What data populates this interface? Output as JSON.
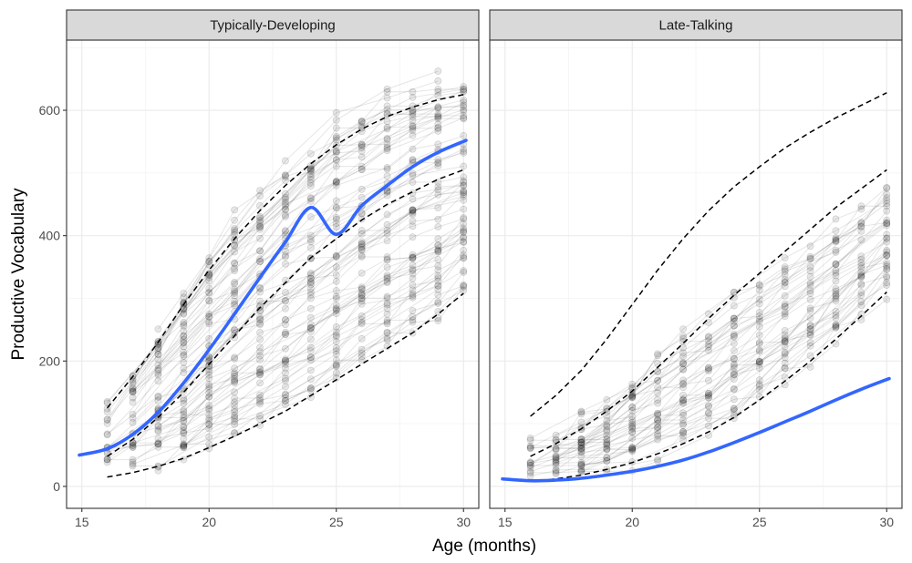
{
  "chart_data": {
    "type": "line",
    "xlabel": "Age (months)",
    "ylabel": "Productive Vocabulary",
    "xlim": [
      14.4,
      30.6
    ],
    "ylim": [
      -35,
      712
    ],
    "xticks": [
      15,
      20,
      25,
      30
    ],
    "yticks": [
      0,
      200,
      400,
      600
    ],
    "grid": true,
    "colors": {
      "trend": "#3366FF",
      "trajectories": "#000000",
      "strip_fill": "#D9D9D9",
      "grid_major": "#EBEBEB",
      "reference": "#000000"
    },
    "panels": [
      {
        "title": "Typically-Developing",
        "observation_ages": [
          16,
          17,
          18,
          19,
          20,
          21,
          22,
          23,
          24,
          25,
          26,
          27,
          28,
          29,
          30
        ],
        "trend_line": {
          "x": [
            14.9,
            16,
            17,
            18,
            19,
            20,
            21,
            22,
            23,
            24,
            25,
            26,
            27,
            28,
            29,
            30.1
          ],
          "y": [
            50,
            60,
            83,
            118,
            165,
            218,
            275,
            333,
            390,
            445,
            402,
            448,
            480,
            510,
            533,
            552
          ]
        },
        "reference_curves": [
          {
            "x": [
              16,
              17,
              18,
              19,
              20,
              21,
              22,
              23,
              24,
              25,
              26,
              27,
              28,
              29,
              30
            ],
            "y": [
              125,
              175,
              230,
              290,
              345,
              395,
              440,
              480,
              515,
              545,
              570,
              590,
              605,
              617,
              625
            ]
          },
          {
            "x": [
              16,
              17,
              18,
              19,
              20,
              21,
              22,
              23,
              24,
              25,
              26,
              27,
              28,
              29,
              30
            ],
            "y": [
              48,
              75,
              110,
              150,
              195,
              240,
              285,
              325,
              365,
              395,
              425,
              450,
              470,
              490,
              505
            ]
          },
          {
            "x": [
              16,
              17,
              18,
              19,
              20,
              21,
              22,
              23,
              24,
              25,
              26,
              27,
              28,
              29,
              30
            ],
            "y": [
              15,
              22,
              32,
              45,
              62,
              80,
              100,
              120,
              145,
              170,
              195,
              220,
              245,
              275,
              308
            ]
          }
        ]
      },
      {
        "title": "Late-Talking",
        "observation_ages": [
          16,
          17,
          18,
          19,
          20,
          21,
          22,
          23,
          24,
          25,
          26,
          27,
          28,
          29,
          30
        ],
        "trend_line": {
          "x": [
            14.9,
            16,
            17,
            18,
            19,
            20,
            21,
            22,
            23,
            24,
            25,
            26,
            27,
            28,
            29,
            30.1
          ],
          "y": [
            12,
            9,
            10,
            13,
            18,
            24,
            32,
            42,
            55,
            70,
            86,
            103,
            120,
            138,
            155,
            172
          ]
        },
        "reference_curves": [
          {
            "x": [
              16,
              17,
              18,
              19,
              20,
              21,
              22,
              23,
              24,
              25,
              26,
              27,
              28,
              29,
              30
            ],
            "y": [
              112,
              145,
              185,
              235,
              290,
              345,
              395,
              440,
              478,
              510,
              540,
              565,
              588,
              608,
              628
            ]
          },
          {
            "x": [
              16,
              17,
              18,
              19,
              20,
              21,
              22,
              23,
              24,
              25,
              26,
              27,
              28,
              29,
              30
            ],
            "y": [
              48,
              68,
              92,
              120,
              152,
              190,
              228,
              268,
              305,
              340,
              375,
              410,
              445,
              475,
              505
            ]
          },
          {
            "x": [
              16,
              17,
              18,
              19,
              20,
              21,
              22,
              23,
              24,
              25,
              26,
              27,
              28,
              29,
              30
            ],
            "y": [
              8,
              12,
              18,
              27,
              38,
              52,
              68,
              87,
              110,
              138,
              168,
              200,
              235,
              272,
              310
            ]
          }
        ]
      }
    ]
  }
}
